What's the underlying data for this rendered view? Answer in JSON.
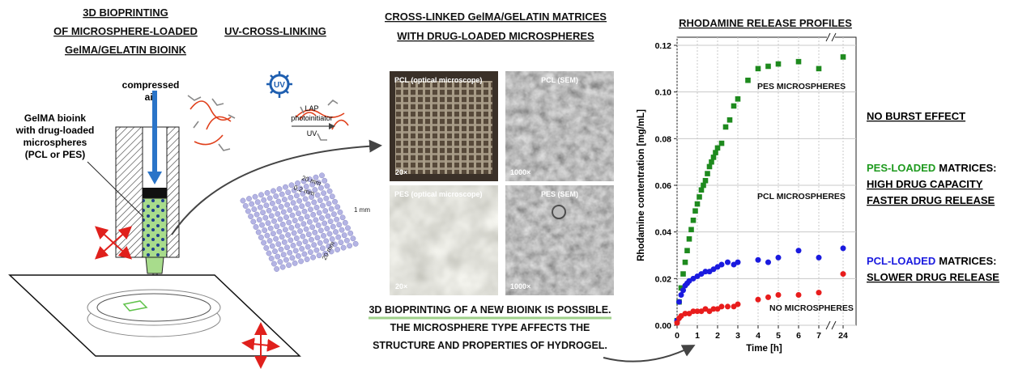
{
  "printing": {
    "title_lines": [
      "3D BIOPRINTING",
      "OF MICROSPHERE-LOADED",
      "GelMA/GELATIN BIOINK"
    ],
    "air_lines": [
      "compressed",
      "air"
    ],
    "bioink_lines": [
      "GelMA bioink",
      "with drug-loaded",
      "microspheres",
      "(PCL or PES)"
    ]
  },
  "crosslinking": {
    "title": "UV-CROSS-LINKING",
    "icon": "UV",
    "arrow_lines": [
      "LAP",
      "photoinitiator"
    ],
    "arrow_below": "UV",
    "dims": [
      "20 mm",
      "0.2 mm",
      "1 mm",
      "20 mm"
    ]
  },
  "matrices": {
    "title_lines": [
      "CROSS-LINKED GelMA/GELATIN MATRICES",
      "WITH DRUG-LOADED MICROSPHERES"
    ],
    "panels": [
      {
        "label": "PCL (optical microscope)",
        "mag": "20×"
      },
      {
        "label": "PCL (SEM)",
        "mag": "1000×"
      },
      {
        "label": "PES (optical microscope)",
        "mag": "20×"
      },
      {
        "label": "PES (SEM)",
        "mag": "1000×"
      }
    ],
    "conclusion_lines": [
      "3D BIOPRINTING OF A NEW BIOINK IS POSSIBLE.",
      "THE MICROSPHERE TYPE AFFECTS THE",
      "STRUCTURE AND PROPERTIES OF HYDROGEL."
    ]
  },
  "chart_data": {
    "type": "scatter",
    "title": "RHODAMINE RELEASE PROFILES",
    "x_label": "Time [h]",
    "y_label": "Rhodamine contentration [mg/mL]",
    "xlim": [
      0,
      24
    ],
    "xticks": [
      0,
      1,
      2,
      3,
      4,
      5,
      6,
      7,
      24
    ],
    "x_axis_break": [
      7,
      24
    ],
    "ylim": [
      0,
      0.12
    ],
    "yticks": [
      {
        "value": 0,
        "label": "0.00"
      },
      {
        "value": 0.02,
        "label": "0.02"
      },
      {
        "value": 0.04,
        "label": "0.04"
      },
      {
        "value": 0.06,
        "label": "0.06"
      },
      {
        "value": 0.08,
        "label": "0.08"
      },
      {
        "value": 0.1,
        "label": "0.10"
      },
      {
        "value": 0.12,
        "label": "0.12"
      }
    ],
    "grid": true,
    "series": [
      {
        "name": "PES MICROSPHERES",
        "color": "#1e8a1e",
        "marker": "square",
        "x": [
          0,
          0.1,
          0.2,
          0.3,
          0.4,
          0.5,
          0.6,
          0.7,
          0.8,
          0.9,
          1.0,
          1.1,
          1.2,
          1.3,
          1.4,
          1.5,
          1.6,
          1.7,
          1.8,
          1.9,
          2.0,
          2.2,
          2.4,
          2.6,
          2.8,
          3.0,
          3.5,
          4,
          4.5,
          5,
          6,
          7,
          24
        ],
        "values": [
          0.002,
          0.01,
          0.016,
          0.022,
          0.027,
          0.032,
          0.037,
          0.041,
          0.045,
          0.049,
          0.052,
          0.055,
          0.058,
          0.06,
          0.062,
          0.065,
          0.068,
          0.07,
          0.072,
          0.074,
          0.076,
          0.078,
          0.085,
          0.088,
          0.094,
          0.097,
          0.105,
          0.11,
          0.111,
          0.112,
          0.113,
          0.11,
          0.115
        ]
      },
      {
        "name": "PCL MICROSPHERES",
        "color": "#1a1adf",
        "marker": "circle",
        "x": [
          0,
          0.1,
          0.2,
          0.3,
          0.4,
          0.5,
          0.6,
          0.8,
          1.0,
          1.2,
          1.4,
          1.6,
          1.8,
          2.0,
          2.2,
          2.5,
          2.8,
          3.0,
          4,
          4.5,
          5,
          6,
          7,
          24
        ],
        "values": [
          0.002,
          0.01,
          0.013,
          0.015,
          0.017,
          0.018,
          0.019,
          0.02,
          0.021,
          0.022,
          0.023,
          0.023,
          0.024,
          0.025,
          0.026,
          0.027,
          0.026,
          0.027,
          0.028,
          0.027,
          0.029,
          0.032,
          0.029,
          0.033
        ]
      },
      {
        "name": "NO MICROSPHERES",
        "color": "#e81c1c",
        "marker": "circle",
        "x": [
          0,
          0.1,
          0.2,
          0.4,
          0.6,
          0.8,
          1.0,
          1.2,
          1.4,
          1.6,
          1.8,
          2.0,
          2.2,
          2.5,
          2.8,
          3.0,
          4,
          4.5,
          5,
          6,
          7,
          24
        ],
        "values": [
          0.001,
          0.003,
          0.004,
          0.005,
          0.005,
          0.006,
          0.006,
          0.006,
          0.007,
          0.006,
          0.007,
          0.007,
          0.008,
          0.008,
          0.008,
          0.009,
          0.011,
          0.012,
          0.013,
          0.013,
          0.014,
          0.022
        ]
      }
    ]
  },
  "findings": {
    "no_burst": "NO BURST EFFECT",
    "pes": {
      "highlight": "PES-LOADED",
      "rest": "MATRICES:",
      "lines": [
        "HIGH DRUG CAPACITY",
        "FASTER DRUG RELEASE"
      ]
    },
    "pcl": {
      "highlight": "PCL-LOADED",
      "rest": "MATRICES:",
      "lines": [
        "SLOWER DRUG RELEASE"
      ]
    }
  }
}
